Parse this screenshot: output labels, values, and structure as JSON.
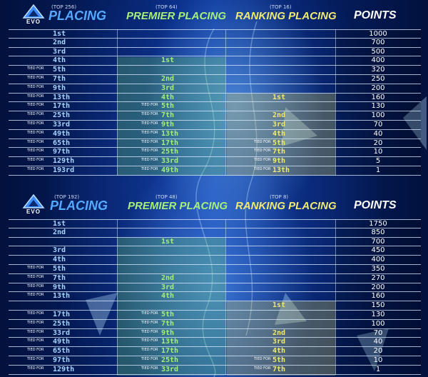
{
  "tables": [
    {
      "logo_text": "EVO",
      "headers": {
        "placing_sub": "(TOP 256)",
        "placing": "PLACING",
        "premier_sub": "(TOP 64)",
        "premier": "PREMIER PLACING",
        "ranking_sub": "(TOP 16)",
        "ranking": "RANKING PLACING",
        "points": "POINTS"
      },
      "rows": [
        {
          "placing_tied": "",
          "placing": "1st",
          "premier_tied": "",
          "premier": "",
          "ranking_tied": "",
          "ranking": "",
          "points": "1000"
        },
        {
          "placing_tied": "",
          "placing": "2nd",
          "premier_tied": "",
          "premier": "",
          "ranking_tied": "",
          "ranking": "",
          "points": "700"
        },
        {
          "placing_tied": "",
          "placing": "3rd",
          "premier_tied": "",
          "premier": "",
          "ranking_tied": "",
          "ranking": "",
          "points": "500"
        },
        {
          "placing_tied": "",
          "placing": "4th",
          "premier_tied": "",
          "premier": "1st",
          "ranking_tied": "",
          "ranking": "",
          "points": "400"
        },
        {
          "placing_tied": "TIED FOR",
          "placing": "5th",
          "premier_tied": "",
          "premier": "",
          "ranking_tied": "",
          "ranking": "",
          "points": "320"
        },
        {
          "placing_tied": "TIED FOR",
          "placing": "7th",
          "premier_tied": "",
          "premier": "2nd",
          "ranking_tied": "",
          "ranking": "",
          "points": "250"
        },
        {
          "placing_tied": "TIED FOR",
          "placing": "9th",
          "premier_tied": "",
          "premier": "3rd",
          "ranking_tied": "",
          "ranking": "",
          "points": "200"
        },
        {
          "placing_tied": "TIED FOR",
          "placing": "13th",
          "premier_tied": "",
          "premier": "4th",
          "ranking_tied": "",
          "ranking": "1st",
          "points": "160"
        },
        {
          "placing_tied": "TIED FOR",
          "placing": "17th",
          "premier_tied": "TIED FOR",
          "premier": "5th",
          "ranking_tied": "",
          "ranking": "",
          "points": "130"
        },
        {
          "placing_tied": "TIED FOR",
          "placing": "25th",
          "premier_tied": "TIED FOR",
          "premier": "7th",
          "ranking_tied": "",
          "ranking": "2nd",
          "points": "100"
        },
        {
          "placing_tied": "TIED FOR",
          "placing": "33rd",
          "premier_tied": "TIED FOR",
          "premier": "9th",
          "ranking_tied": "",
          "ranking": "3rd",
          "points": "70"
        },
        {
          "placing_tied": "TIED FOR",
          "placing": "49th",
          "premier_tied": "TIED FOR",
          "premier": "13th",
          "ranking_tied": "",
          "ranking": "4th",
          "points": "40"
        },
        {
          "placing_tied": "TIED FOR",
          "placing": "65th",
          "premier_tied": "TIED FOR",
          "premier": "17th",
          "ranking_tied": "TIED FOR",
          "ranking": "5th",
          "points": "20"
        },
        {
          "placing_tied": "TIED FOR",
          "placing": "97th",
          "premier_tied": "TIED FOR",
          "premier": "25th",
          "ranking_tied": "TIED FOR",
          "ranking": "7th",
          "points": "10"
        },
        {
          "placing_tied": "TIED FOR",
          "placing": "129th",
          "premier_tied": "TIED FOR",
          "premier": "33rd",
          "ranking_tied": "TIED FOR",
          "ranking": "9th",
          "points": "5"
        },
        {
          "placing_tied": "TIED FOR",
          "placing": "193rd",
          "premier_tied": "TIED FOR",
          "premier": "49th",
          "ranking_tied": "TIED FOR",
          "ranking": "13th",
          "points": "1"
        }
      ]
    },
    {
      "logo_text": "EVO",
      "headers": {
        "placing_sub": "(TOP 192)",
        "placing": "PLACING",
        "premier_sub": "(TOP 48)",
        "premier": "PREMIER PLACING",
        "ranking_sub": "(TOP 8)",
        "ranking": "RANKING PLACING",
        "points": "POINTS"
      },
      "rows": [
        {
          "placing_tied": "",
          "placing": "1st",
          "premier_tied": "",
          "premier": "",
          "ranking_tied": "",
          "ranking": "",
          "points": "1750"
        },
        {
          "placing_tied": "",
          "placing": "2nd",
          "premier_tied": "",
          "premier": "",
          "ranking_tied": "",
          "ranking": "",
          "points": "850"
        },
        {
          "placing_tied": "",
          "placing": "",
          "premier_tied": "",
          "premier": "1st",
          "ranking_tied": "",
          "ranking": "",
          "points": "700"
        },
        {
          "placing_tied": "",
          "placing": "3rd",
          "premier_tied": "",
          "premier": "",
          "ranking_tied": "",
          "ranking": "",
          "points": "450"
        },
        {
          "placing_tied": "",
          "placing": "4th",
          "premier_tied": "",
          "premier": "",
          "ranking_tied": "",
          "ranking": "",
          "points": "400"
        },
        {
          "placing_tied": "TIED FOR",
          "placing": "5th",
          "premier_tied": "",
          "premier": "",
          "ranking_tied": "",
          "ranking": "",
          "points": "350"
        },
        {
          "placing_tied": "TIED FOR",
          "placing": "7th",
          "premier_tied": "",
          "premier": "2nd",
          "ranking_tied": "",
          "ranking": "",
          "points": "270"
        },
        {
          "placing_tied": "TIED FOR",
          "placing": "9th",
          "premier_tied": "",
          "premier": "3rd",
          "ranking_tied": "",
          "ranking": "",
          "points": "200"
        },
        {
          "placing_tied": "TIED FOR",
          "placing": "13th",
          "premier_tied": "",
          "premier": "4th",
          "ranking_tied": "",
          "ranking": "",
          "points": "160"
        },
        {
          "placing_tied": "",
          "placing": "",
          "premier_tied": "",
          "premier": "",
          "ranking_tied": "",
          "ranking": "1st",
          "points": "150"
        },
        {
          "placing_tied": "TIED FOR",
          "placing": "17th",
          "premier_tied": "TIED FOR",
          "premier": "5th",
          "ranking_tied": "",
          "ranking": "",
          "points": "130"
        },
        {
          "placing_tied": "TIED FOR",
          "placing": "25th",
          "premier_tied": "TIED FOR",
          "premier": "7th",
          "ranking_tied": "",
          "ranking": "",
          "points": "100"
        },
        {
          "placing_tied": "TIED FOR",
          "placing": "33rd",
          "premier_tied": "TIED FOR",
          "premier": "9th",
          "ranking_tied": "",
          "ranking": "2nd",
          "points": "70"
        },
        {
          "placing_tied": "TIED FOR",
          "placing": "49th",
          "premier_tied": "TIED FOR",
          "premier": "13th",
          "ranking_tied": "",
          "ranking": "3rd",
          "points": "40"
        },
        {
          "placing_tied": "TIED FOR",
          "placing": "65th",
          "premier_tied": "TIED FOR",
          "premier": "17th",
          "ranking_tied": "",
          "ranking": "4th",
          "points": "20"
        },
        {
          "placing_tied": "TIED FOR",
          "placing": "97th",
          "premier_tied": "TIED FOR",
          "premier": "25th",
          "ranking_tied": "TIED FOR",
          "ranking": "5th",
          "points": "10"
        },
        {
          "placing_tied": "TIED FOR",
          "placing": "129th",
          "premier_tied": "TIED FOR",
          "premier": "33rd",
          "ranking_tied": "TIED FOR",
          "ranking": "7th",
          "points": "1"
        }
      ]
    }
  ]
}
